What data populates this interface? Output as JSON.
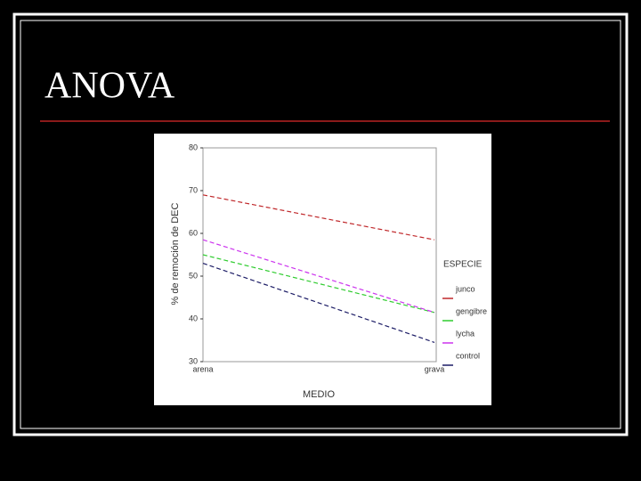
{
  "title": "ANOVA",
  "chart_data": {
    "type": "line",
    "ylabel": "% de remoción de DEC",
    "xlabel": "MEDIO",
    "categories": [
      "arena",
      "grava"
    ],
    "ylim": [
      30,
      80
    ],
    "yticks": [
      30,
      40,
      50,
      60,
      70,
      80
    ],
    "legend_title": "ESPECIE",
    "series": [
      {
        "name": "junco",
        "color": "#c0282b",
        "values": [
          69,
          58.5
        ]
      },
      {
        "name": "gengibre",
        "color": "#2fcc2f",
        "values": [
          55,
          41.5
        ]
      },
      {
        "name": "lycha",
        "color": "#cc33ee",
        "values": [
          58.5,
          41.5
        ]
      },
      {
        "name": "control",
        "color": "#1c1c66",
        "values": [
          53,
          34.5
        ]
      }
    ]
  }
}
